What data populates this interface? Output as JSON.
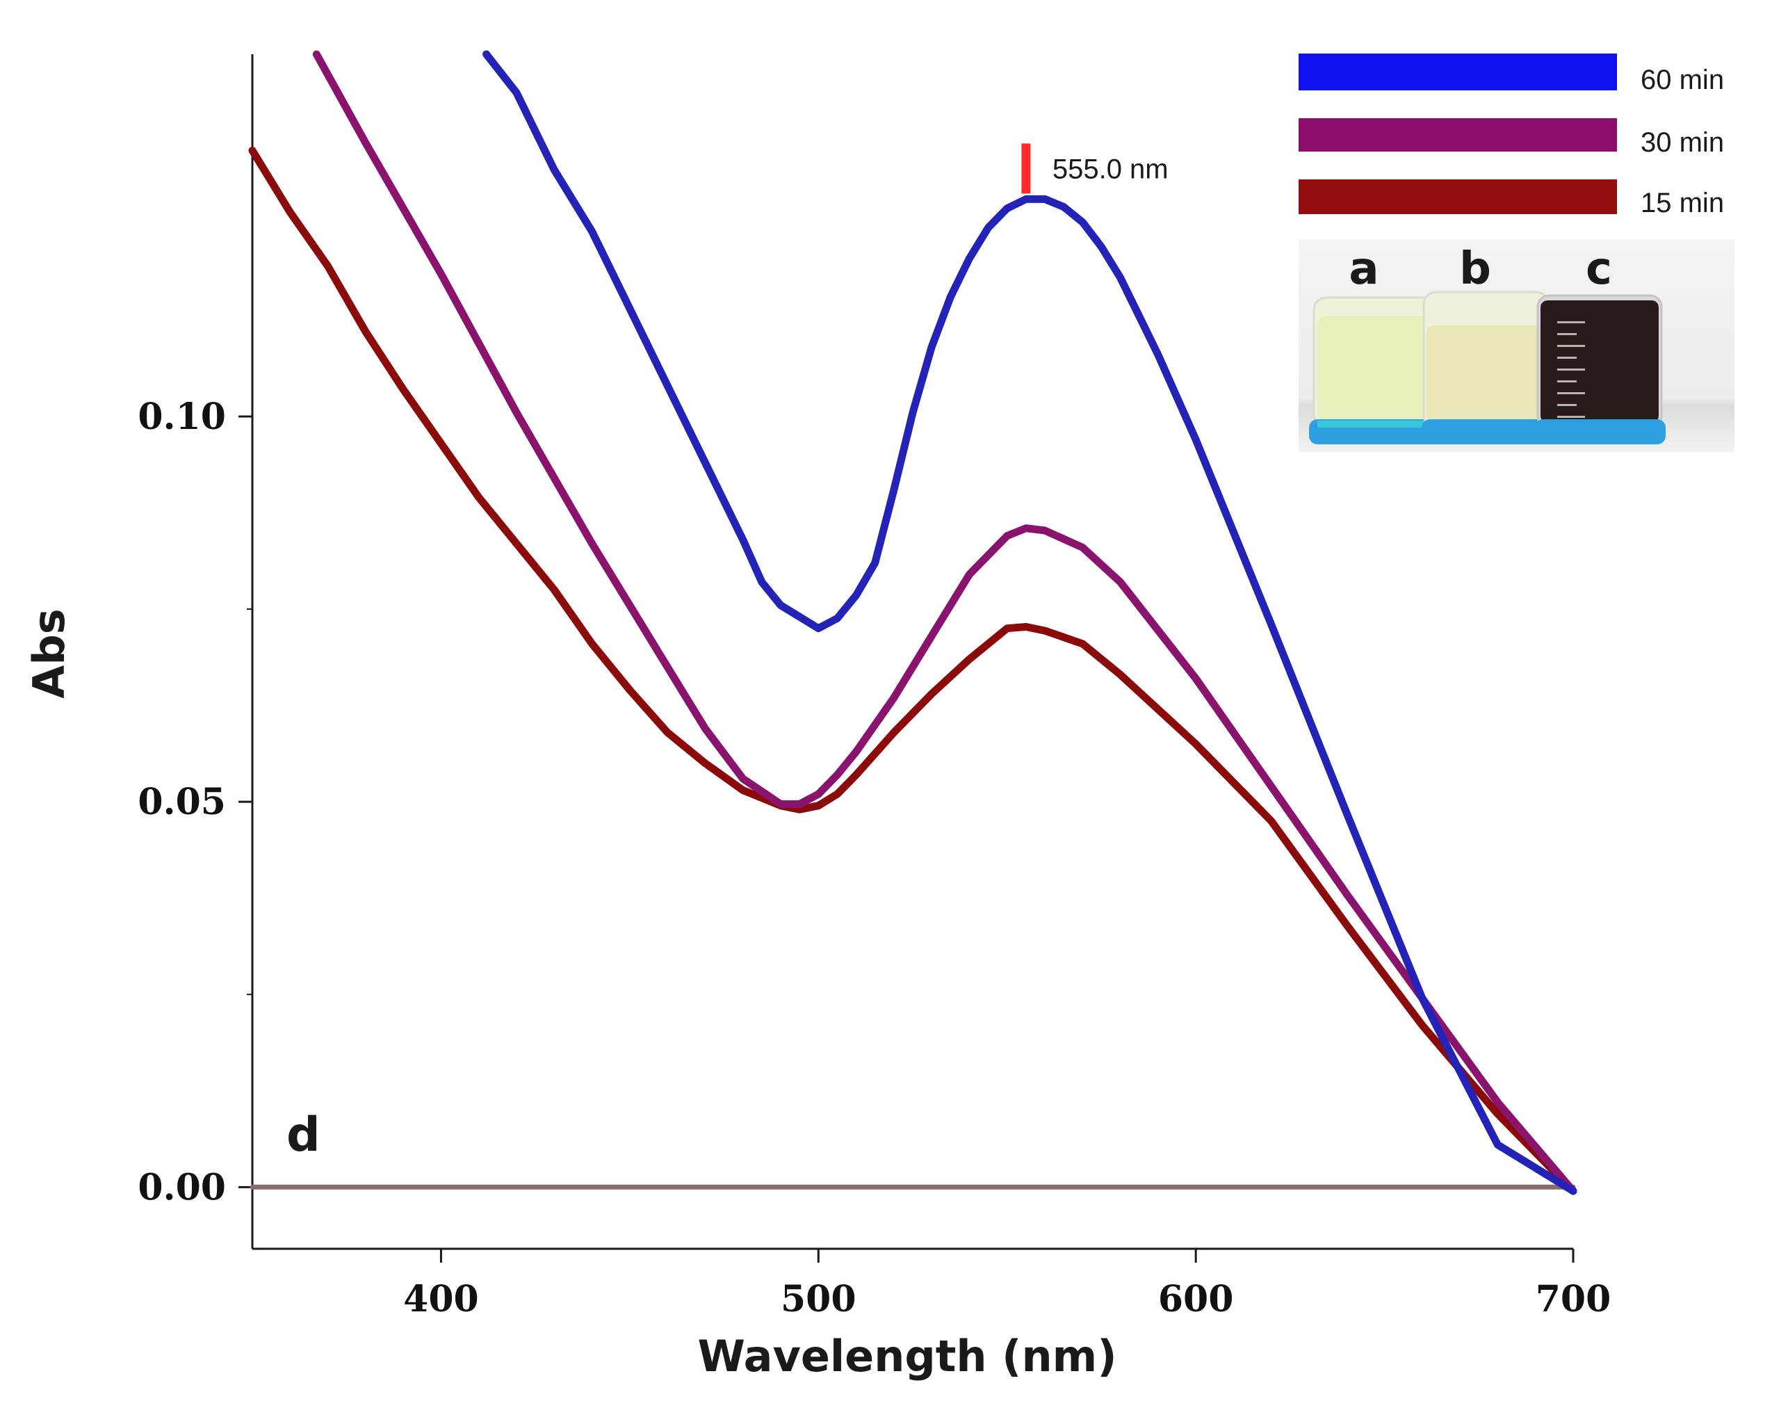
{
  "chart_data": {
    "type": "line",
    "xlabel": "Wavelength (nm)",
    "ylabel": "Abs",
    "xlim": [
      350,
      700
    ],
    "ylim": [
      -0.008,
      0.147
    ],
    "x_ticks": [
      400,
      500,
      600,
      700
    ],
    "x_tick_labels": [
      "400",
      "500",
      "600",
      "700"
    ],
    "y_ticks": [
      0.0,
      0.05,
      0.1
    ],
    "y_tick_labels": [
      "0.00",
      "0.05",
      "0.10"
    ],
    "grid": false,
    "legend_position": "top-right",
    "series": [
      {
        "name": "60 min",
        "color": "#2323b8",
        "x": [
          412,
          420,
          430,
          440,
          450,
          460,
          470,
          480,
          485,
          490,
          495,
          500,
          505,
          510,
          515,
          520,
          525,
          530,
          535,
          540,
          545,
          550,
          555,
          560,
          565,
          570,
          575,
          580,
          590,
          600,
          610,
          620,
          640,
          660,
          680,
          700
        ],
        "y": [
          0.147,
          0.142,
          0.132,
          0.124,
          0.114,
          0.104,
          0.094,
          0.084,
          0.0785,
          0.0755,
          0.074,
          0.0725,
          0.0738,
          0.0768,
          0.081,
          0.0905,
          0.1005,
          0.109,
          0.1155,
          0.1205,
          0.1245,
          0.127,
          0.1282,
          0.1282,
          0.1272,
          0.1252,
          0.122,
          0.118,
          0.108,
          0.097,
          0.085,
          0.073,
          0.0485,
          0.0245,
          0.0055,
          -0.0005
        ]
      },
      {
        "name": "30 min",
        "color": "#8a136e",
        "x": [
          367,
          380,
          400,
          420,
          440,
          460,
          470,
          480,
          490,
          495,
          500,
          505,
          510,
          520,
          530,
          540,
          550,
          555,
          560,
          570,
          580,
          600,
          620,
          640,
          660,
          680,
          700
        ],
        "y": [
          0.147,
          0.1355,
          0.1185,
          0.1005,
          0.0835,
          0.0675,
          0.0595,
          0.053,
          0.0497,
          0.0497,
          0.051,
          0.0535,
          0.0565,
          0.0635,
          0.0715,
          0.0795,
          0.0845,
          0.0855,
          0.0852,
          0.083,
          0.0785,
          0.066,
          0.052,
          0.038,
          0.0245,
          0.011,
          -0.0005
        ]
      },
      {
        "name": "15 min",
        "color": "#8b0b0b",
        "x": [
          350,
          360,
          370,
          380,
          390,
          400,
          410,
          420,
          430,
          440,
          450,
          460,
          470,
          480,
          490,
          495,
          500,
          505,
          510,
          520,
          530,
          540,
          550,
          555,
          560,
          570,
          580,
          600,
          620,
          640,
          660,
          680,
          700
        ],
        "y": [
          0.1345,
          0.1265,
          0.1195,
          0.111,
          0.1035,
          0.0965,
          0.0895,
          0.0835,
          0.0775,
          0.0705,
          0.0645,
          0.059,
          0.055,
          0.0515,
          0.0495,
          0.049,
          0.0495,
          0.051,
          0.0535,
          0.059,
          0.064,
          0.0685,
          0.0725,
          0.0727,
          0.0722,
          0.0705,
          0.0665,
          0.0575,
          0.0475,
          0.034,
          0.021,
          0.0095,
          -0.0005
        ]
      },
      {
        "name": "d",
        "color": "#8a6b6b",
        "x": [
          350,
          700
        ],
        "y": [
          0.0,
          0.0
        ]
      }
    ],
    "annotations": [
      {
        "text": "555.0 nm",
        "x": 555,
        "y": 0.1282,
        "marker_color": "#ff2a2a"
      }
    ],
    "panel_label": "d",
    "legend": {
      "entries": [
        {
          "label": "60 min",
          "color": "#1010f0"
        },
        {
          "label": "30 min",
          "color": "#8c0d6c"
        },
        {
          "label": "15 min",
          "color": "#930f0f"
        }
      ]
    },
    "inset_photo": {
      "vial_labels": [
        "a",
        "b",
        "c"
      ],
      "vial_colors": [
        "#e4efba",
        "#e9e6b8",
        "#2a1a1a"
      ]
    }
  }
}
